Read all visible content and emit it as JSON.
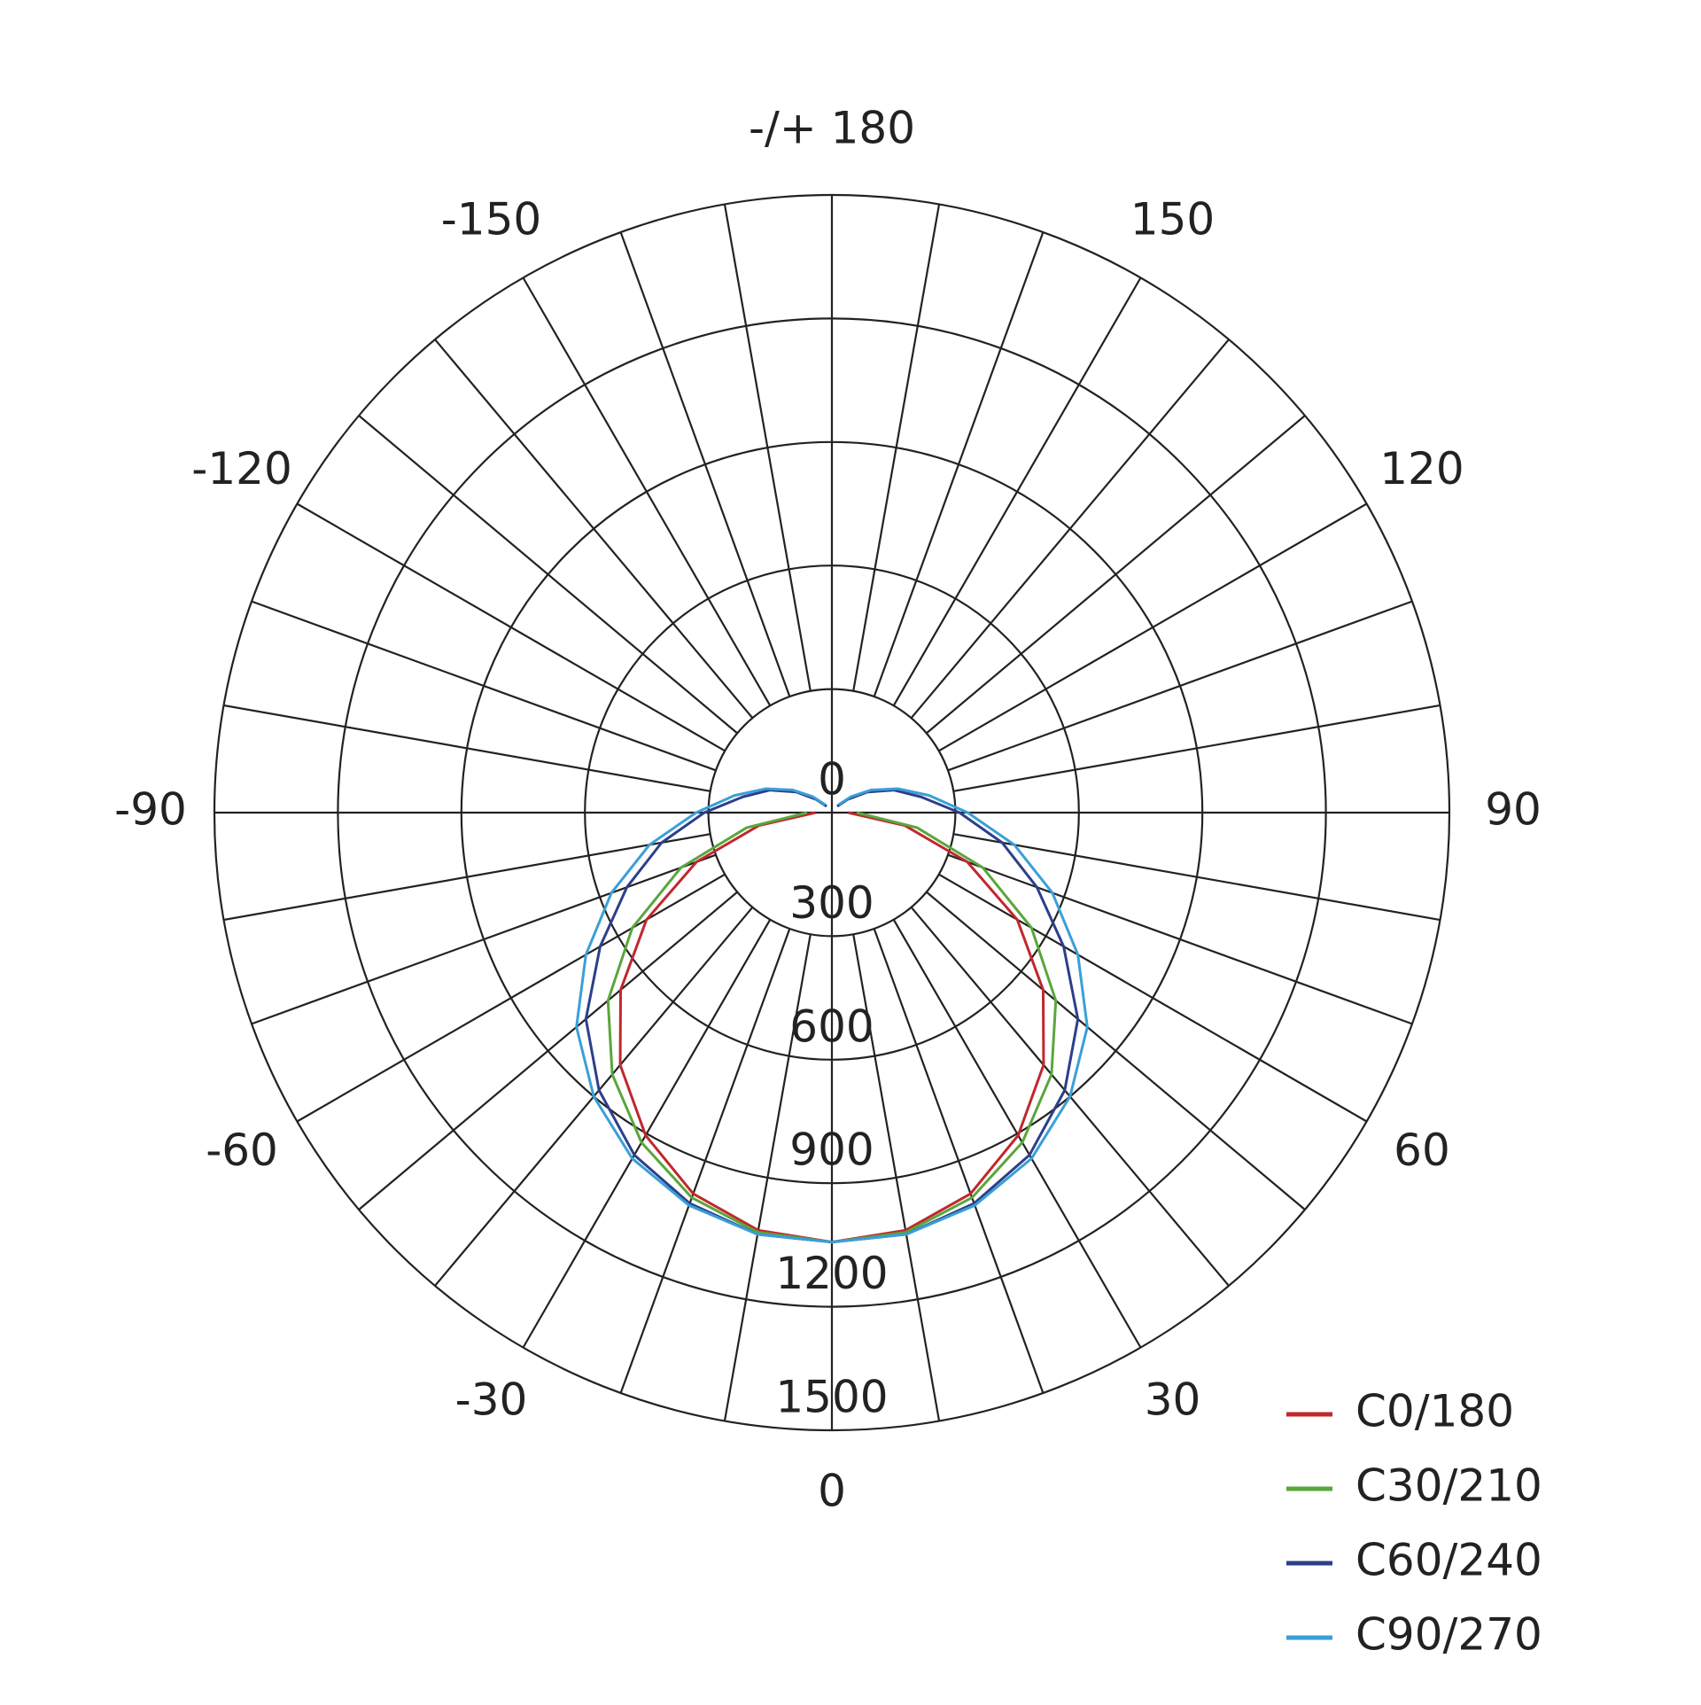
{
  "chart_data": {
    "type": "polar",
    "rlim": [
      0,
      1500
    ],
    "rticks": [
      0,
      300,
      600,
      900,
      1200,
      1500
    ],
    "thetaticks": [
      -150,
      -120,
      -90,
      -60,
      -30,
      0,
      30,
      60,
      90,
      120,
      150,
      {
        "value": 180,
        "label": "-/+ 180"
      }
    ],
    "grid": true,
    "legend": "lower right",
    "x": [
      -140,
      -130,
      -120,
      -110,
      -100,
      -90,
      -80,
      -70,
      -60,
      -50,
      -40,
      -30,
      -20,
      -10,
      0,
      10,
      20,
      30,
      40,
      50,
      60,
      70,
      80,
      90,
      100,
      110,
      120,
      130,
      140
    ],
    "series": [
      {
        "name": "C0/180",
        "color": "#c0282d",
        "values": [
          null,
          null,
          null,
          null,
          null,
          40,
          180,
          350,
          520,
          670,
          800,
          905,
          985,
          1030,
          1043,
          1030,
          985,
          905,
          800,
          670,
          520,
          350,
          180,
          40,
          null,
          null,
          null,
          null,
          null
        ]
      },
      {
        "name": "C30/210",
        "color": "#5aa63c",
        "values": [
          null,
          null,
          null,
          null,
          null,
          60,
          210,
          390,
          560,
          710,
          830,
          925,
          995,
          1035,
          1043,
          1035,
          995,
          925,
          830,
          710,
          560,
          390,
          210,
          60,
          null,
          null,
          null,
          null,
          null
        ]
      },
      {
        "name": "C60/240",
        "color": "#2c3f8a",
        "values": [
          20,
          50,
          100,
          160,
          220,
          310,
          420,
          530,
          650,
          780,
          880,
          960,
          1010,
          1040,
          1043,
          1040,
          1010,
          960,
          880,
          780,
          650,
          530,
          420,
          310,
          220,
          160,
          100,
          50,
          20
        ]
      },
      {
        "name": "C90/270",
        "color": "#3a9fd8",
        "values": [
          25,
          60,
          110,
          170,
          240,
          330,
          450,
          570,
          690,
          810,
          900,
          970,
          1015,
          1040,
          1043,
          1040,
          1015,
          970,
          900,
          810,
          690,
          570,
          450,
          330,
          240,
          170,
          110,
          60,
          25
        ]
      }
    ]
  }
}
